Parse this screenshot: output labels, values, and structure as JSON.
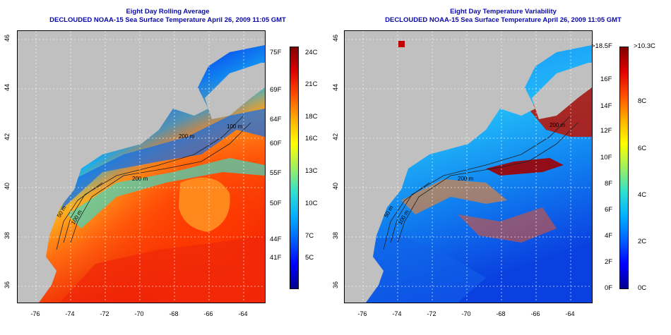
{
  "colors": {
    "land": "#c0c0c0",
    "title": "#0a0aa8",
    "scale": [
      "#00008f",
      "#0000ff",
      "#0060ff",
      "#00b0ff",
      "#30e0d0",
      "#9ff060",
      "#ffff00",
      "#ffb000",
      "#ff5000",
      "#e00000",
      "#800000"
    ]
  },
  "left": {
    "title1": "Eight Day Rolling Average",
    "title2": "DECLOUDED NOAA-15 Sea Surface Temperature April 26, 2009 11:05 GMT",
    "lat_labels": [
      "46",
      "44",
      "42",
      "40",
      "38",
      "36"
    ],
    "lon_labels": [
      "-76",
      "-74",
      "-72",
      "-70",
      "-68",
      "-66",
      "-64"
    ],
    "contour_labels": [
      "100 m",
      "200 m",
      "50 m",
      "200 m",
      "100 m"
    ],
    "scale_f": [
      "75F",
      "69F",
      "64F",
      "60F",
      "55F",
      "50F",
      "44F",
      "41F"
    ],
    "scale_c": [
      "24C",
      "21C",
      "18C",
      "16C",
      "13C",
      "10C",
      "7C",
      "5C"
    ]
  },
  "right": {
    "title1": "Eight Day Temperature Variability",
    "title2": "DECLOUDED NOAA-15 Sea Surface Temperature April 26, 2009 11:05 GMT",
    "lat_labels": [
      "46",
      "44",
      "42",
      "40",
      "38",
      "36"
    ],
    "lon_labels": [
      "-76",
      "-74",
      "-72",
      "-70",
      "-68",
      "-66",
      "-64"
    ],
    "contour_labels": [
      "200 m",
      "50 m",
      "200 m",
      "100 m"
    ],
    "scale_f": [
      ">18.5F",
      "16F",
      "14F",
      "12F",
      "10F",
      "8F",
      "6F",
      "4F",
      "2F",
      "0F"
    ],
    "scale_c": [
      ">10.3C",
      "8C",
      "6C",
      "4C",
      "2C",
      "0C"
    ]
  }
}
